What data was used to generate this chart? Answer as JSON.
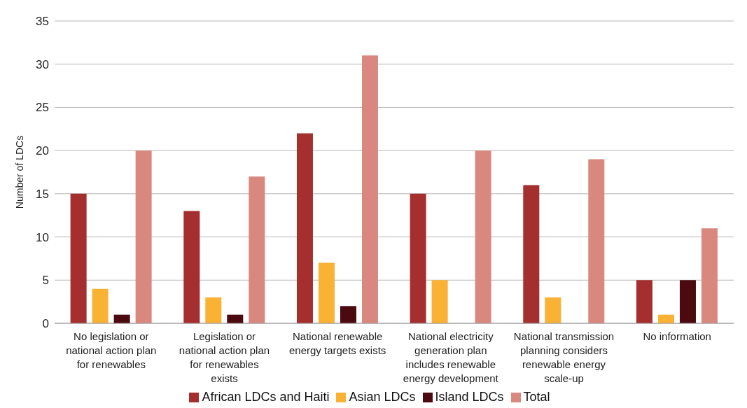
{
  "chart_data": {
    "type": "bar",
    "ylabel": "Number of LDCs",
    "categories": [
      "No legislation or\nnational action plan\nfor renewables",
      "Legislation or\nnational action plan\nfor renewables\nexists",
      "National renewable\nenergy targets exists",
      "National electricity\ngeneration plan\nincludes renewable\nenergy development",
      "National transmission\nplanning considers\nrenewable energy\nscale-up",
      "No information"
    ],
    "series": [
      {
        "name": "African LDCs and Haiti",
        "color": "#a52f2f",
        "values": [
          15,
          13,
          22,
          15,
          16,
          5
        ]
      },
      {
        "name": "Asian LDCs",
        "color": "#f9b233",
        "values": [
          4,
          3,
          7,
          5,
          3,
          1
        ]
      },
      {
        "name": "Island LDCs",
        "color": "#4a0a0f",
        "values": [
          1,
          1,
          2,
          0,
          0,
          5
        ]
      },
      {
        "name": "Total",
        "color": "#d98880",
        "values": [
          20,
          17,
          31,
          20,
          19,
          11
        ]
      }
    ],
    "ylim": [
      0,
      35
    ],
    "yticks": [
      0,
      5,
      10,
      15,
      20,
      25,
      30,
      35
    ],
    "grid": "y",
    "legend": "bottom"
  }
}
